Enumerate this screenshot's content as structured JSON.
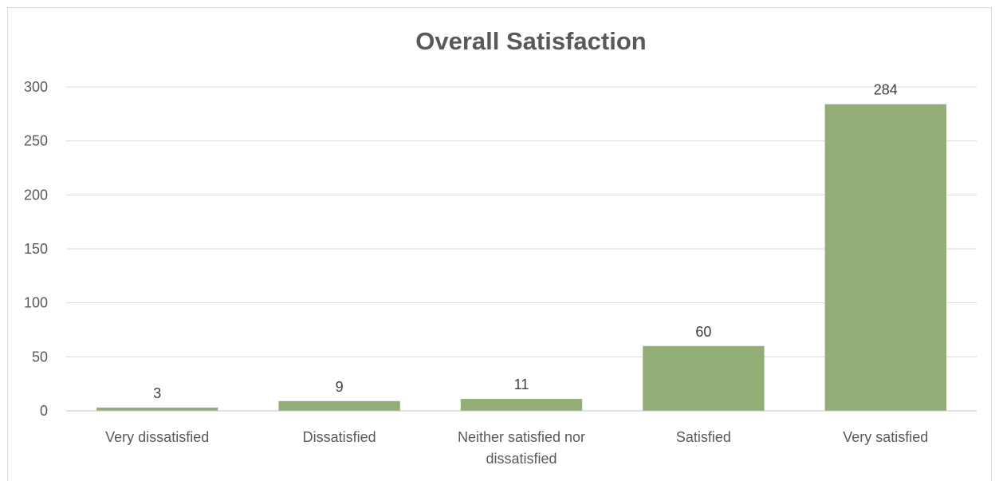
{
  "chart_data": {
    "type": "bar",
    "title": "Overall Satisfaction",
    "categories": [
      [
        "Very dissatisfied"
      ],
      [
        "Dissatisfied"
      ],
      [
        "Neither satisfied nor",
        "dissatisfied"
      ],
      [
        "Satisfied"
      ],
      [
        "Very satisfied"
      ]
    ],
    "values": [
      3,
      9,
      11,
      60,
      284
    ],
    "yticks": [
      0,
      50,
      100,
      150,
      200,
      250,
      300
    ],
    "ylim": [
      0,
      300
    ],
    "grid": true,
    "legend": "none",
    "bar_color": "#92ad75"
  }
}
